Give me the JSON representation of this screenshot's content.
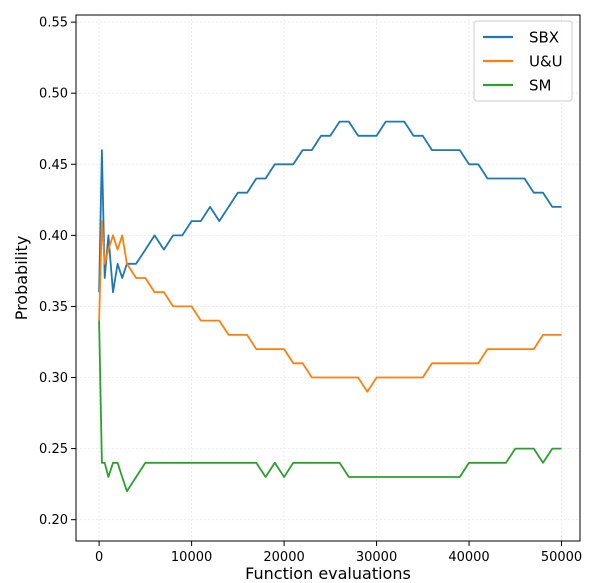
{
  "chart_data": {
    "type": "line",
    "title": "",
    "xlabel": "Function evaluations",
    "ylabel": "Probability",
    "xlim": [
      -2500,
      52000
    ],
    "ylim": [
      0.185,
      0.555
    ],
    "x_ticks": [
      0,
      10000,
      20000,
      30000,
      40000,
      50000
    ],
    "x_tick_labels": [
      "0",
      "10000",
      "20000",
      "30000",
      "40000",
      "50000"
    ],
    "y_ticks": [
      0.2,
      0.25,
      0.3,
      0.35,
      0.4,
      0.45,
      0.5,
      0.55
    ],
    "y_tick_labels": [
      "0.20",
      "0.25",
      "0.30",
      "0.35",
      "0.40",
      "0.45",
      "0.50",
      "0.55"
    ],
    "grid": true,
    "legend_position": "top-right",
    "series": [
      {
        "name": "SBX",
        "color": "#1f77b4",
        "x": [
          0,
          300,
          600,
          1000,
          1500,
          2000,
          2500,
          3000,
          4000,
          5000,
          6000,
          7000,
          8000,
          9000,
          10000,
          11000,
          12000,
          13000,
          14000,
          15000,
          16000,
          17000,
          18000,
          19000,
          20000,
          21000,
          22000,
          23000,
          24000,
          25000,
          26000,
          27000,
          28000,
          29000,
          30000,
          31000,
          32000,
          33000,
          34000,
          35000,
          36000,
          37000,
          38000,
          39000,
          40000,
          41000,
          42000,
          43000,
          44000,
          45000,
          46000,
          47000,
          48000,
          49000,
          50000
        ],
        "values": [
          0.36,
          0.46,
          0.37,
          0.4,
          0.36,
          0.38,
          0.37,
          0.38,
          0.38,
          0.39,
          0.4,
          0.39,
          0.4,
          0.4,
          0.41,
          0.41,
          0.42,
          0.41,
          0.42,
          0.43,
          0.43,
          0.44,
          0.44,
          0.45,
          0.45,
          0.45,
          0.46,
          0.46,
          0.47,
          0.47,
          0.48,
          0.48,
          0.47,
          0.47,
          0.47,
          0.48,
          0.48,
          0.48,
          0.47,
          0.47,
          0.46,
          0.46,
          0.46,
          0.46,
          0.45,
          0.45,
          0.44,
          0.44,
          0.44,
          0.44,
          0.44,
          0.43,
          0.43,
          0.42,
          0.42
        ]
      },
      {
        "name": "U&U",
        "color": "#ff7f0e",
        "x": [
          0,
          300,
          600,
          1000,
          1500,
          2000,
          2500,
          3000,
          4000,
          5000,
          6000,
          7000,
          8000,
          9000,
          10000,
          11000,
          12000,
          13000,
          14000,
          15000,
          16000,
          17000,
          18000,
          19000,
          20000,
          21000,
          22000,
          23000,
          24000,
          25000,
          26000,
          27000,
          28000,
          29000,
          30000,
          31000,
          32000,
          33000,
          34000,
          35000,
          36000,
          37000,
          38000,
          39000,
          40000,
          41000,
          42000,
          43000,
          44000,
          45000,
          46000,
          47000,
          48000,
          49000,
          50000
        ],
        "values": [
          0.34,
          0.41,
          0.38,
          0.39,
          0.4,
          0.39,
          0.4,
          0.38,
          0.37,
          0.37,
          0.36,
          0.36,
          0.35,
          0.35,
          0.35,
          0.34,
          0.34,
          0.34,
          0.33,
          0.33,
          0.33,
          0.32,
          0.32,
          0.32,
          0.32,
          0.31,
          0.31,
          0.3,
          0.3,
          0.3,
          0.3,
          0.3,
          0.3,
          0.29,
          0.3,
          0.3,
          0.3,
          0.3,
          0.3,
          0.3,
          0.31,
          0.31,
          0.31,
          0.31,
          0.31,
          0.31,
          0.32,
          0.32,
          0.32,
          0.32,
          0.32,
          0.32,
          0.33,
          0.33,
          0.33
        ]
      },
      {
        "name": "SM",
        "color": "#2ca02c",
        "x": [
          0,
          300,
          600,
          1000,
          1500,
          2000,
          2500,
          3000,
          4000,
          5000,
          6000,
          7000,
          8000,
          9000,
          10000,
          11000,
          12000,
          13000,
          14000,
          15000,
          16000,
          17000,
          18000,
          19000,
          20000,
          21000,
          22000,
          23000,
          24000,
          25000,
          26000,
          27000,
          28000,
          29000,
          30000,
          31000,
          32000,
          33000,
          34000,
          35000,
          36000,
          37000,
          38000,
          39000,
          40000,
          41000,
          42000,
          43000,
          44000,
          45000,
          46000,
          47000,
          48000,
          49000,
          50000
        ],
        "values": [
          0.34,
          0.24,
          0.24,
          0.23,
          0.24,
          0.24,
          0.23,
          0.22,
          0.23,
          0.24,
          0.24,
          0.24,
          0.24,
          0.24,
          0.24,
          0.24,
          0.24,
          0.24,
          0.24,
          0.24,
          0.24,
          0.24,
          0.23,
          0.24,
          0.23,
          0.24,
          0.24,
          0.24,
          0.24,
          0.24,
          0.24,
          0.23,
          0.23,
          0.23,
          0.23,
          0.23,
          0.23,
          0.23,
          0.23,
          0.23,
          0.23,
          0.23,
          0.23,
          0.23,
          0.24,
          0.24,
          0.24,
          0.24,
          0.24,
          0.25,
          0.25,
          0.25,
          0.24,
          0.25,
          0.25
        ]
      }
    ]
  }
}
